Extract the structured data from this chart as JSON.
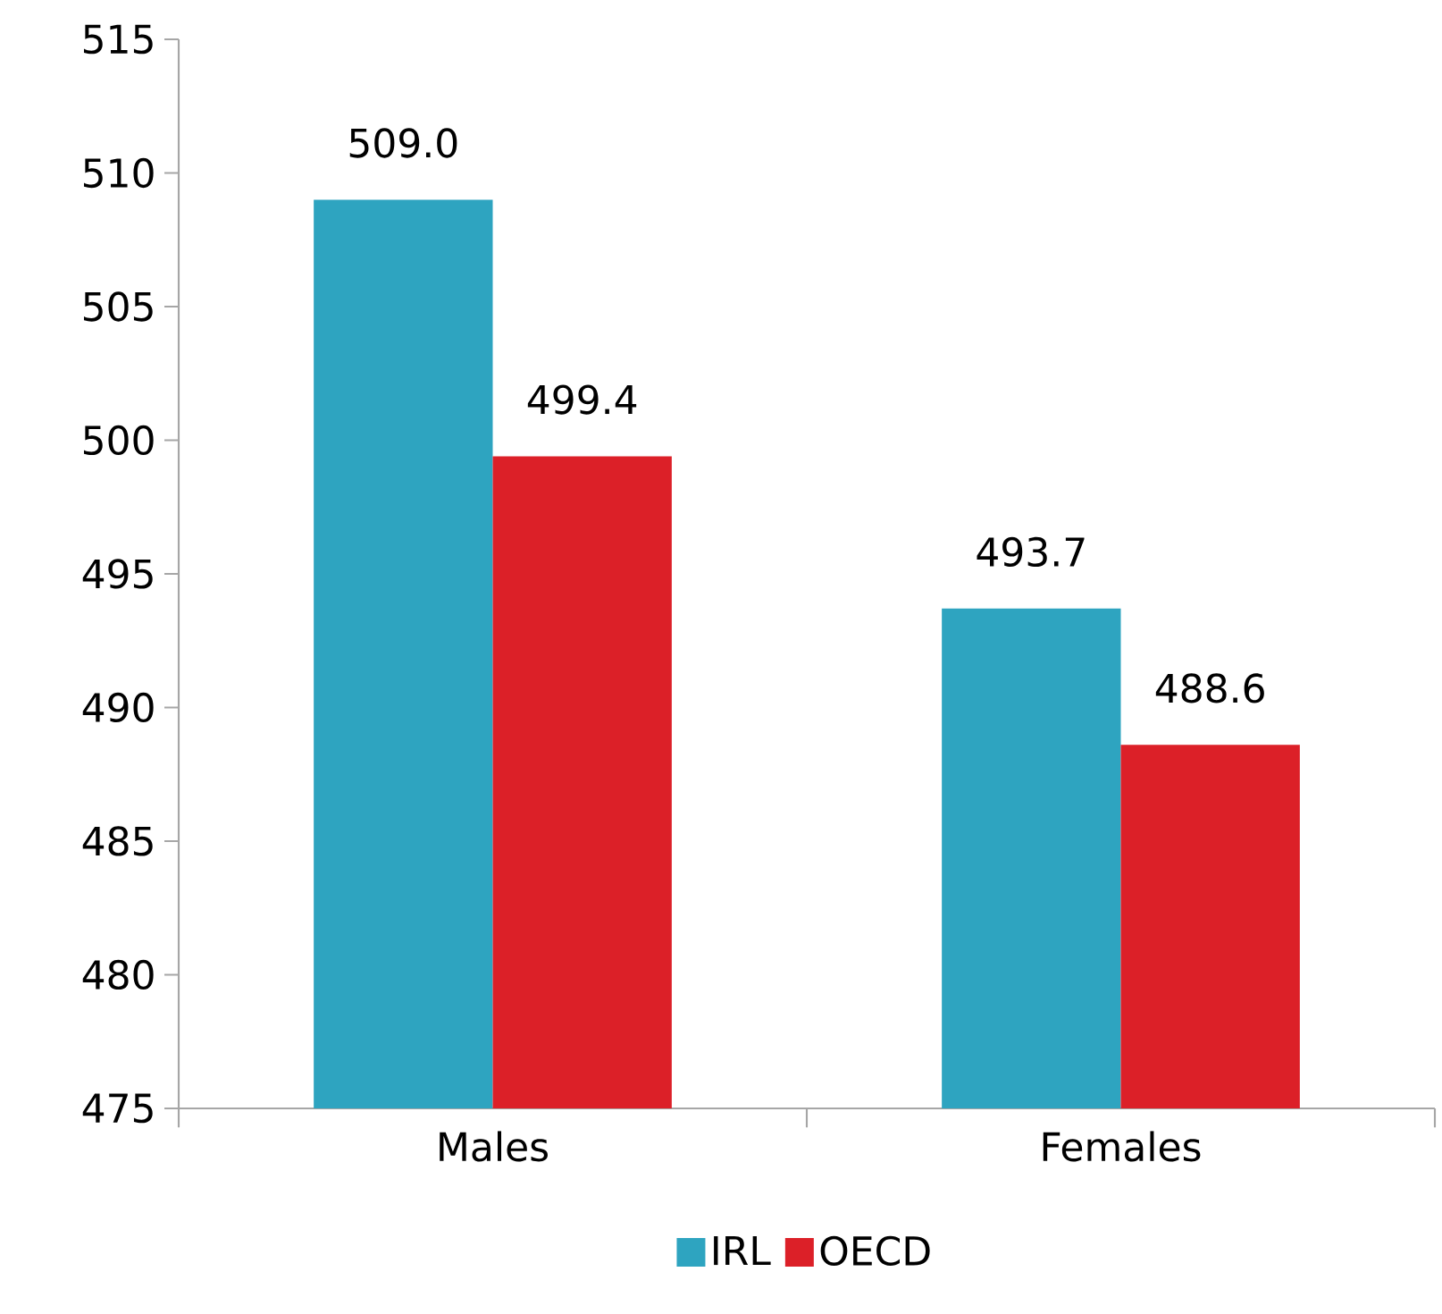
{
  "chart_data": {
    "type": "bar",
    "categories": [
      "Males",
      "Females"
    ],
    "series": [
      {
        "name": "IRL",
        "color": "#2ea4c0",
        "values": [
          509.0,
          493.7
        ],
        "value_labels": [
          "509.0",
          "493.7"
        ]
      },
      {
        "name": "OECD",
        "color": "#dc2028",
        "values": [
          499.4,
          488.6
        ],
        "value_labels": [
          "499.4",
          "488.6"
        ]
      }
    ],
    "ylim": [
      475,
      515
    ],
    "yticks": [
      475,
      480,
      485,
      490,
      495,
      500,
      505,
      510,
      515
    ],
    "legend": "bottom",
    "grid": false
  }
}
